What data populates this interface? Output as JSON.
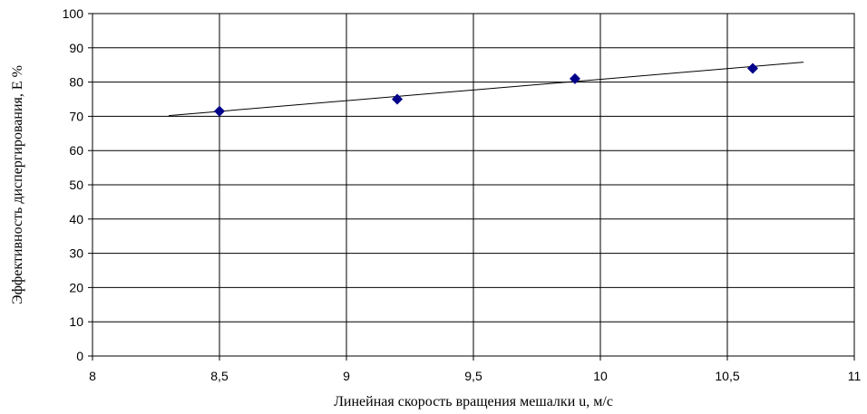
{
  "chart_data": {
    "type": "scatter",
    "title": "",
    "xlabel": "Линейная скорость вращения мешалки u, м/с",
    "ylabel": "Эффективность диспергирования, Е %",
    "xlim": [
      8,
      11
    ],
    "ylim": [
      0,
      100
    ],
    "x_ticks": [
      "8",
      "8,5",
      "9",
      "9,5",
      "10",
      "10,5",
      "11"
    ],
    "y_ticks": [
      "0",
      "10",
      "20",
      "30",
      "40",
      "50",
      "60",
      "70",
      "80",
      "90",
      "100"
    ],
    "grid": true,
    "marker": "diamond",
    "marker_color": "#00008B",
    "series": [
      {
        "x": [
          8.5,
          9.2,
          9.9,
          10.6
        ],
        "y": [
          71.5,
          75,
          81,
          84
        ]
      }
    ],
    "trendline": {
      "type": "linear",
      "x": [
        8.3,
        10.8
      ],
      "y": [
        70.2,
        85.8
      ]
    }
  }
}
